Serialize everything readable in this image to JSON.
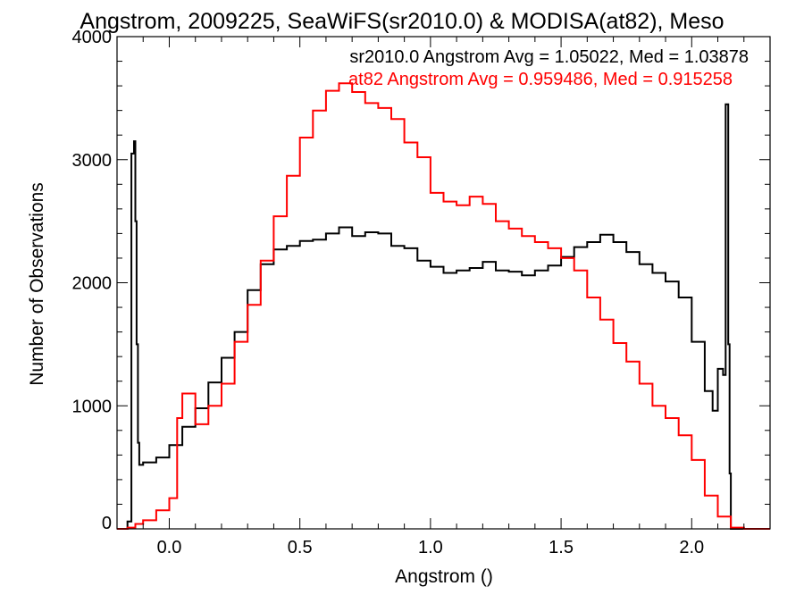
{
  "chart_data": {
    "type": "line",
    "title": "Angstrom, 2009225, SeaWiFS(sr2010.0) & MODISA(at82), Meso",
    "xlabel": "Angstrom ()",
    "ylabel": "Number of Observations",
    "xlim": [
      -0.2,
      2.3
    ],
    "ylim": [
      0,
      4000
    ],
    "x_ticks": [
      0.0,
      0.5,
      1.0,
      1.5,
      2.0
    ],
    "x_tick_labels": [
      "0.0",
      "0.5",
      "1.0",
      "1.5",
      "2.0"
    ],
    "y_ticks": [
      0,
      1000,
      2000,
      3000,
      4000
    ],
    "y_tick_labels": [
      "0",
      "1000",
      "2000",
      "3000",
      "4000"
    ],
    "grid": false,
    "annotations": [
      {
        "text": "sr2010.0 Angstrom Avg = 1.05022, Med = 1.03878",
        "color": "#000000"
      },
      {
        "text": "at82 Angstrom Avg = 0.959486, Med = 0.915258",
        "color": "#ff0000"
      }
    ],
    "series": [
      {
        "color": "#000000",
        "x": [
          -0.2,
          -0.17,
          -0.16,
          -0.145,
          -0.135,
          -0.13,
          -0.125,
          -0.12,
          -0.115,
          -0.1,
          -0.05,
          0.0,
          0.05,
          0.1,
          0.15,
          0.2,
          0.25,
          0.3,
          0.35,
          0.4,
          0.45,
          0.5,
          0.55,
          0.6,
          0.65,
          0.7,
          0.75,
          0.8,
          0.85,
          0.9,
          0.95,
          1.0,
          1.05,
          1.1,
          1.15,
          1.2,
          1.25,
          1.3,
          1.35,
          1.4,
          1.45,
          1.5,
          1.55,
          1.6,
          1.65,
          1.7,
          1.75,
          1.8,
          1.85,
          1.9,
          1.95,
          2.0,
          2.05,
          2.08,
          2.1,
          2.12,
          2.13,
          2.14,
          2.145,
          2.15,
          2.3
        ],
        "y": [
          0,
          0,
          60,
          3050,
          3150,
          2500,
          1500,
          700,
          520,
          540,
          580,
          680,
          830,
          980,
          1190,
          1390,
          1600,
          1940,
          2150,
          2270,
          2300,
          2340,
          2350,
          2400,
          2450,
          2380,
          2410,
          2400,
          2300,
          2280,
          2180,
          2130,
          2080,
          2100,
          2120,
          2170,
          2100,
          2090,
          2060,
          2100,
          2140,
          2210,
          2290,
          2330,
          2390,
          2330,
          2250,
          2150,
          2080,
          2010,
          1880,
          1520,
          1120,
          960,
          1300,
          1250,
          3450,
          1500,
          450,
          0,
          0
        ]
      },
      {
        "color": "#ff0000",
        "x": [
          -0.2,
          -0.16,
          -0.13,
          -0.1,
          -0.05,
          0.0,
          0.03,
          0.05,
          0.1,
          0.15,
          0.2,
          0.25,
          0.3,
          0.35,
          0.4,
          0.45,
          0.5,
          0.55,
          0.6,
          0.65,
          0.7,
          0.75,
          0.8,
          0.85,
          0.9,
          0.95,
          1.0,
          1.05,
          1.1,
          1.15,
          1.2,
          1.25,
          1.3,
          1.35,
          1.4,
          1.45,
          1.5,
          1.55,
          1.6,
          1.65,
          1.7,
          1.75,
          1.8,
          1.85,
          1.9,
          1.95,
          2.0,
          2.05,
          2.1,
          2.15,
          2.2,
          2.3
        ],
        "y": [
          0,
          10,
          40,
          70,
          150,
          250,
          900,
          1100,
          850,
          1000,
          1180,
          1520,
          1820,
          2180,
          2540,
          2870,
          3180,
          3400,
          3560,
          3620,
          3550,
          3460,
          3420,
          3330,
          3140,
          3020,
          2730,
          2660,
          2630,
          2700,
          2640,
          2500,
          2440,
          2380,
          2330,
          2280,
          2200,
          2100,
          1880,
          1700,
          1510,
          1360,
          1180,
          1000,
          900,
          760,
          560,
          270,
          100,
          10,
          0,
          0
        ]
      }
    ]
  }
}
